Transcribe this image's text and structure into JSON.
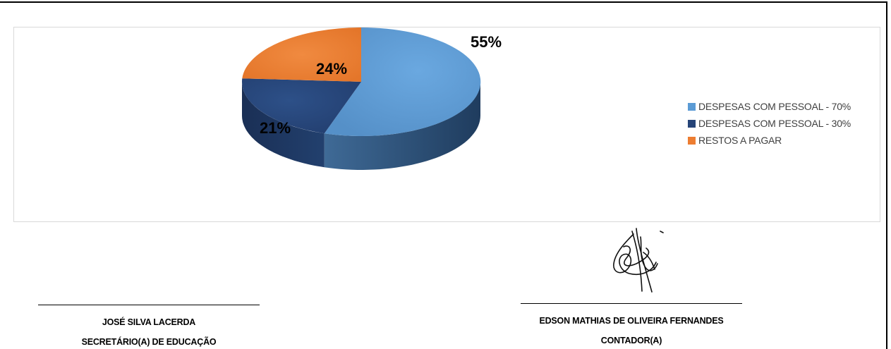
{
  "chart_data": {
    "type": "pie",
    "categories": [
      "DESPESAS COM PESSOAL - 70%",
      "DESPESAS COM PESSOAL - 30%",
      "RESTOS A PAGAR"
    ],
    "values": [
      55,
      21,
      24
    ],
    "data_labels": [
      "55%",
      "21%",
      "24%"
    ],
    "colors": [
      "#5b9bd5",
      "#264478",
      "#ed7d31"
    ],
    "legend_position": "right",
    "style": "3d"
  },
  "signatures": {
    "left": {
      "name": "JOSÉ SILVA LACERDA",
      "role": "SECRETÁRIO(A) DE EDUCAÇÃO"
    },
    "right": {
      "name": "EDSON MATHIAS DE OLIVEIRA FERNANDES",
      "role": "CONTADOR(A)"
    }
  }
}
